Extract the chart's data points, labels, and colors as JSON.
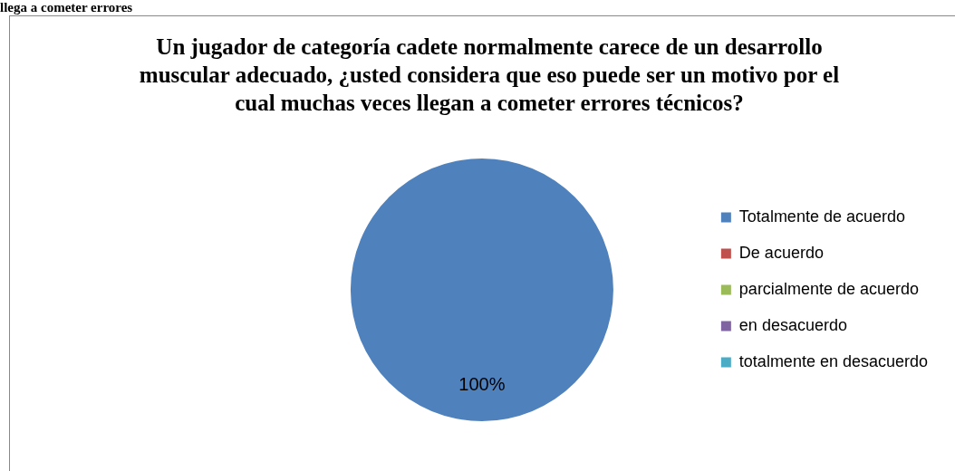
{
  "chart_data": {
    "type": "pie",
    "title": "Un jugador de categoría cadete normalmente carece de un desarrollo muscular adecuado, ¿usted considera que eso puede ser un motivo por el cual muchas veces llegan a cometer errores técnicos?",
    "categories": [
      "Totalmente de acuerdo",
      "De acuerdo",
      "parcialmente de acuerdo",
      "en desacuerdo",
      "totalmente en desacuerdo"
    ],
    "values": [
      100,
      0,
      0,
      0,
      0
    ],
    "colors": [
      "#4f81bd",
      "#c0504d",
      "#9bbb59",
      "#8064a2",
      "#4bacc6"
    ],
    "value_labels": [
      "100%",
      null,
      null,
      null,
      null
    ],
    "legend": "right",
    "annotations": [
      "llega a cometer errores"
    ]
  }
}
